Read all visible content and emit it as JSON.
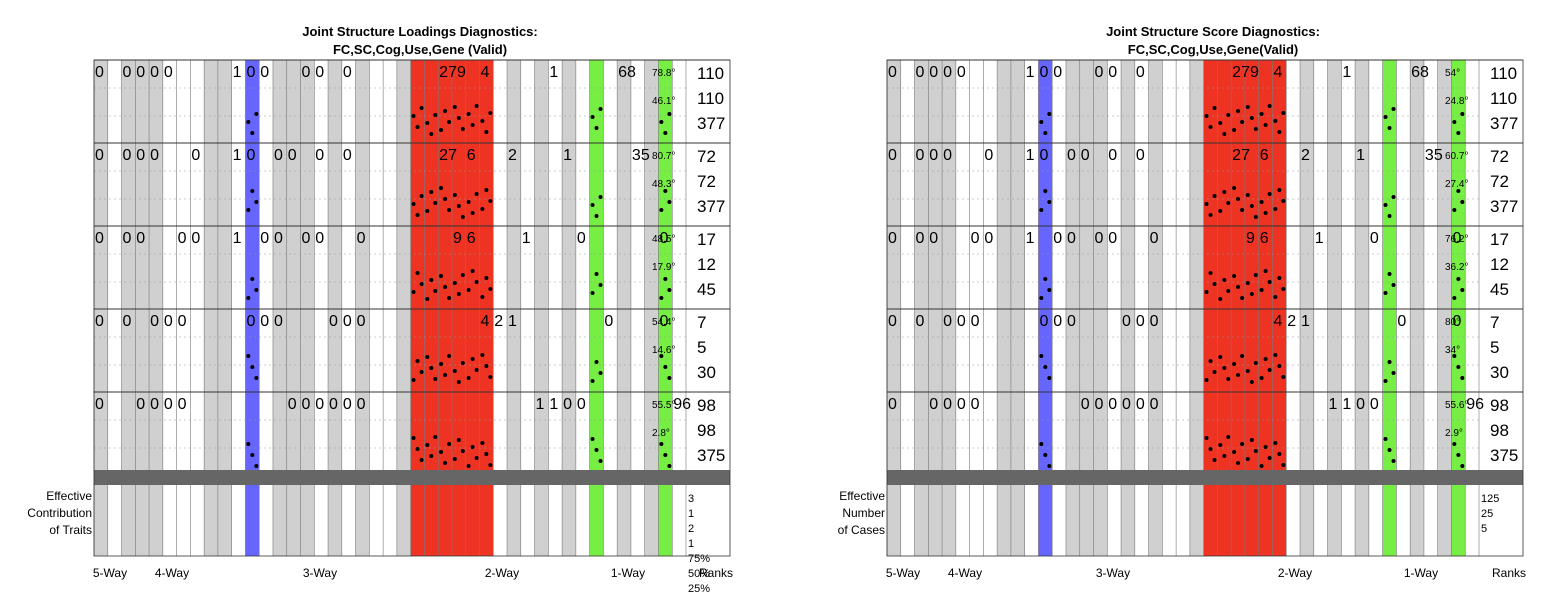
{
  "panels": [
    {
      "title_line1": "Joint Structure Loadings Diagnostics:",
      "title_line2": "FC,SC,Cog,Use,Gene (Valid)",
      "bottom_label": [
        "Effective",
        "Contribution",
        "of Traits"
      ],
      "group_labels": [
        "5-Way",
        "4-Way",
        "3-Way",
        "2-Way",
        "1-Way",
        "Ranks"
      ],
      "ranks": [
        [
          "110",
          "110",
          "377"
        ],
        [
          "72",
          "72",
          "377"
        ],
        [
          "17",
          "12",
          "45"
        ],
        [
          "7",
          "5",
          "30"
        ],
        [
          "98",
          "98",
          "375"
        ]
      ],
      "row_cells": [
        [
          {
            "c": 0,
            "t": "0"
          },
          {
            "c": 2,
            "t": "0"
          },
          {
            "c": 3,
            "t": "0"
          },
          {
            "c": 4,
            "t": "0"
          },
          {
            "c": 5,
            "t": "0"
          },
          {
            "c": 10,
            "t": "1"
          },
          {
            "c": 11,
            "t": "0"
          },
          {
            "c": 12,
            "t": "0"
          },
          {
            "c": 15,
            "t": "0"
          },
          {
            "c": 16,
            "t": "0"
          },
          {
            "c": 18,
            "t": "0"
          },
          {
            "c": 25,
            "t": "279"
          },
          {
            "c": 28,
            "t": "4"
          },
          {
            "c": 33,
            "t": "1"
          },
          {
            "c": 38,
            "t": "68"
          }
        ],
        [
          {
            "c": 0,
            "t": "0"
          },
          {
            "c": 2,
            "t": "0"
          },
          {
            "c": 3,
            "t": "0"
          },
          {
            "c": 4,
            "t": "0"
          },
          {
            "c": 7,
            "t": "0"
          },
          {
            "c": 10,
            "t": "1"
          },
          {
            "c": 11,
            "t": "0"
          },
          {
            "c": 13,
            "t": "0"
          },
          {
            "c": 14,
            "t": "0"
          },
          {
            "c": 16,
            "t": "0"
          },
          {
            "c": 18,
            "t": "0"
          },
          {
            "c": 25,
            "t": "27"
          },
          {
            "c": 27,
            "t": "6"
          },
          {
            "c": 30,
            "t": "2"
          },
          {
            "c": 34,
            "t": "1"
          },
          {
            "c": 39,
            "t": "35"
          }
        ],
        [
          {
            "c": 0,
            "t": "0"
          },
          {
            "c": 2,
            "t": "0"
          },
          {
            "c": 3,
            "t": "0"
          },
          {
            "c": 6,
            "t": "0"
          },
          {
            "c": 7,
            "t": "0"
          },
          {
            "c": 10,
            "t": "1"
          },
          {
            "c": 12,
            "t": "0"
          },
          {
            "c": 13,
            "t": "0"
          },
          {
            "c": 15,
            "t": "0"
          },
          {
            "c": 16,
            "t": "0"
          },
          {
            "c": 19,
            "t": "0"
          },
          {
            "c": 26,
            "t": "9"
          },
          {
            "c": 27,
            "t": "6"
          },
          {
            "c": 31,
            "t": "1"
          },
          {
            "c": 35,
            "t": "0"
          },
          {
            "c": 41,
            "t": "0"
          }
        ],
        [
          {
            "c": 0,
            "t": "0"
          },
          {
            "c": 2,
            "t": "0"
          },
          {
            "c": 4,
            "t": "0"
          },
          {
            "c": 5,
            "t": "0"
          },
          {
            "c": 6,
            "t": "0"
          },
          {
            "c": 11,
            "t": "0"
          },
          {
            "c": 12,
            "t": "0"
          },
          {
            "c": 13,
            "t": "0"
          },
          {
            "c": 17,
            "t": "0"
          },
          {
            "c": 18,
            "t": "0"
          },
          {
            "c": 19,
            "t": "0"
          },
          {
            "c": 28,
            "t": "4"
          },
          {
            "c": 29,
            "t": "2"
          },
          {
            "c": 30,
            "t": "1"
          },
          {
            "c": 37,
            "t": "0"
          },
          {
            "c": 41,
            "t": "0"
          }
        ],
        [
          {
            "c": 0,
            "t": "0"
          },
          {
            "c": 3,
            "t": "0"
          },
          {
            "c": 4,
            "t": "0"
          },
          {
            "c": 5,
            "t": "0"
          },
          {
            "c": 6,
            "t": "0"
          },
          {
            "c": 14,
            "t": "0"
          },
          {
            "c": 15,
            "t": "0"
          },
          {
            "c": 16,
            "t": "0"
          },
          {
            "c": 17,
            "t": "0"
          },
          {
            "c": 18,
            "t": "0"
          },
          {
            "c": 19,
            "t": "0"
          },
          {
            "c": 32,
            "t": "1"
          },
          {
            "c": 33,
            "t": "1"
          },
          {
            "c": 34,
            "t": "0"
          },
          {
            "c": 35,
            "t": "0"
          },
          {
            "c": 42,
            "t": "96"
          }
        ]
      ],
      "angles": [
        [
          "78.8°",
          "46.1°"
        ],
        [
          "80.7°",
          "48.3°"
        ],
        [
          "48.5°",
          "17.9°"
        ],
        [
          "54.4°",
          "14.6°"
        ],
        [
          "55.5°",
          "2.8°"
        ]
      ],
      "bottom_annotations": [
        "3",
        "1",
        "2",
        "1",
        "75%",
        "50%",
        "25%"
      ]
    },
    {
      "title_line1": "Joint Structure Score Diagnostics:",
      "title_line2": "FC,SC,Cog,Use,Gene(Valid)",
      "bottom_label": [
        "Effective",
        "Number",
        "of Cases"
      ],
      "group_labels": [
        "5-Way",
        "4-Way",
        "3-Way",
        "2-Way",
        "1-Way",
        "Ranks"
      ],
      "ranks": [
        [
          "110",
          "110",
          "377"
        ],
        [
          "72",
          "72",
          "377"
        ],
        [
          "17",
          "12",
          "45"
        ],
        [
          "7",
          "5",
          "30"
        ],
        [
          "98",
          "98",
          "375"
        ]
      ],
      "row_cells": [
        [
          {
            "c": 0,
            "t": "0"
          },
          {
            "c": 2,
            "t": "0"
          },
          {
            "c": 3,
            "t": "0"
          },
          {
            "c": 4,
            "t": "0"
          },
          {
            "c": 5,
            "t": "0"
          },
          {
            "c": 10,
            "t": "1"
          },
          {
            "c": 11,
            "t": "0"
          },
          {
            "c": 12,
            "t": "0"
          },
          {
            "c": 15,
            "t": "0"
          },
          {
            "c": 16,
            "t": "0"
          },
          {
            "c": 18,
            "t": "0"
          },
          {
            "c": 25,
            "t": "279"
          },
          {
            "c": 28,
            "t": "4"
          },
          {
            "c": 33,
            "t": "1"
          },
          {
            "c": 38,
            "t": "68"
          }
        ],
        [
          {
            "c": 0,
            "t": "0"
          },
          {
            "c": 2,
            "t": "0"
          },
          {
            "c": 3,
            "t": "0"
          },
          {
            "c": 4,
            "t": "0"
          },
          {
            "c": 7,
            "t": "0"
          },
          {
            "c": 10,
            "t": "1"
          },
          {
            "c": 11,
            "t": "0"
          },
          {
            "c": 13,
            "t": "0"
          },
          {
            "c": 14,
            "t": "0"
          },
          {
            "c": 16,
            "t": "0"
          },
          {
            "c": 18,
            "t": "0"
          },
          {
            "c": 25,
            "t": "27"
          },
          {
            "c": 27,
            "t": "6"
          },
          {
            "c": 30,
            "t": "2"
          },
          {
            "c": 34,
            "t": "1"
          },
          {
            "c": 39,
            "t": "35"
          }
        ],
        [
          {
            "c": 0,
            "t": "0"
          },
          {
            "c": 2,
            "t": "0"
          },
          {
            "c": 3,
            "t": "0"
          },
          {
            "c": 6,
            "t": "0"
          },
          {
            "c": 7,
            "t": "0"
          },
          {
            "c": 10,
            "t": "1"
          },
          {
            "c": 12,
            "t": "0"
          },
          {
            "c": 13,
            "t": "0"
          },
          {
            "c": 15,
            "t": "0"
          },
          {
            "c": 16,
            "t": "0"
          },
          {
            "c": 19,
            "t": "0"
          },
          {
            "c": 26,
            "t": "9"
          },
          {
            "c": 27,
            "t": "6"
          },
          {
            "c": 31,
            "t": "1"
          },
          {
            "c": 35,
            "t": "0"
          },
          {
            "c": 41,
            "t": "0"
          }
        ],
        [
          {
            "c": 0,
            "t": "0"
          },
          {
            "c": 2,
            "t": "0"
          },
          {
            "c": 4,
            "t": "0"
          },
          {
            "c": 5,
            "t": "0"
          },
          {
            "c": 6,
            "t": "0"
          },
          {
            "c": 11,
            "t": "0"
          },
          {
            "c": 12,
            "t": "0"
          },
          {
            "c": 13,
            "t": "0"
          },
          {
            "c": 17,
            "t": "0"
          },
          {
            "c": 18,
            "t": "0"
          },
          {
            "c": 19,
            "t": "0"
          },
          {
            "c": 28,
            "t": "4"
          },
          {
            "c": 29,
            "t": "2"
          },
          {
            "c": 30,
            "t": "1"
          },
          {
            "c": 37,
            "t": "0"
          },
          {
            "c": 41,
            "t": "0"
          }
        ],
        [
          {
            "c": 0,
            "t": "0"
          },
          {
            "c": 3,
            "t": "0"
          },
          {
            "c": 4,
            "t": "0"
          },
          {
            "c": 5,
            "t": "0"
          },
          {
            "c": 6,
            "t": "0"
          },
          {
            "c": 14,
            "t": "0"
          },
          {
            "c": 15,
            "t": "0"
          },
          {
            "c": 16,
            "t": "0"
          },
          {
            "c": 17,
            "t": "0"
          },
          {
            "c": 18,
            "t": "0"
          },
          {
            "c": 19,
            "t": "0"
          },
          {
            "c": 32,
            "t": "1"
          },
          {
            "c": 33,
            "t": "1"
          },
          {
            "c": 34,
            "t": "0"
          },
          {
            "c": 35,
            "t": "0"
          },
          {
            "c": 42,
            "t": "96"
          }
        ]
      ],
      "angles": [
        [
          "54°",
          "24.8°"
        ],
        [
          "60.7°",
          "27.4°"
        ],
        [
          "76.2°",
          "36.2°"
        ],
        [
          "80°",
          "34°"
        ],
        [
          "55.6°",
          "2.9°"
        ]
      ],
      "bottom_annotations": [
        "125",
        "25",
        "5"
      ]
    }
  ],
  "colors": {
    "gray": "#d0d0d0",
    "blue": "#6666ff",
    "red": "#ee3322",
    "green": "#77ee44",
    "bar": "#666666"
  },
  "chart_data": [
    {
      "type": "heatmap",
      "title": "Joint Structure Loadings Diagnostics: FC,SC,Cog,Use,Gene (Valid)",
      "x_groups": [
        "5-Way",
        "4-Way",
        "3-Way",
        "2-Way",
        "1-Way"
      ],
      "rows": 5,
      "columns": 43,
      "nonzero_columns": [
        {
          "group": "3-Way",
          "color": "blue",
          "count": 1
        },
        {
          "group": "2-Way",
          "color": "red",
          "count": 6
        },
        {
          "group": "1-Way",
          "color": "green",
          "count": 2
        }
      ],
      "ranks_per_row": [
        [
          110,
          110,
          377
        ],
        [
          72,
          72,
          377
        ],
        [
          17,
          12,
          45
        ],
        [
          7,
          5,
          30
        ],
        [
          98,
          98,
          375
        ]
      ]
    },
    {
      "type": "heatmap",
      "title": "Joint Structure Score Diagnostics: FC,SC,Cog,Use,Gene(Valid)",
      "x_groups": [
        "5-Way",
        "4-Way",
        "3-Way",
        "2-Way",
        "1-Way"
      ],
      "rows": 5,
      "columns": 43,
      "nonzero_columns": [
        {
          "group": "3-Way",
          "color": "blue",
          "count": 1
        },
        {
          "group": "2-Way",
          "color": "red",
          "count": 6
        },
        {
          "group": "1-Way",
          "color": "green",
          "count": 2
        }
      ],
      "ranks_per_row": [
        [
          110,
          110,
          377
        ],
        [
          72,
          72,
          377
        ],
        [
          17,
          12,
          45
        ],
        [
          7,
          5,
          30
        ],
        [
          98,
          98,
          375
        ]
      ]
    }
  ]
}
